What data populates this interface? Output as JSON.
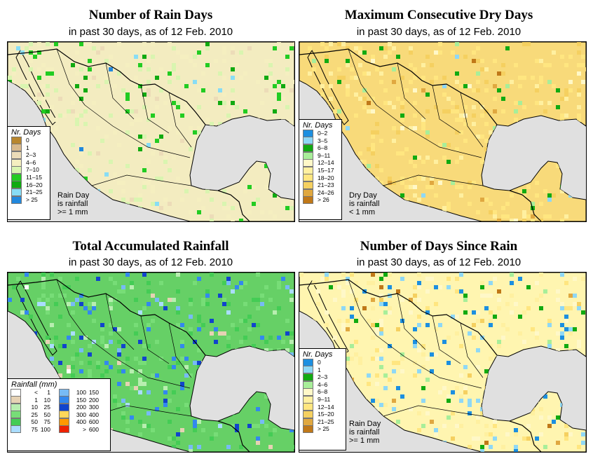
{
  "panels": [
    {
      "title": "Number of Rain Days",
      "subtitle": "in past 30 days, as of  12 Feb. 2010",
      "legend_title": "Nr. Days",
      "legend": [
        {
          "label": "0",
          "color": "#b8862e"
        },
        {
          "label": "1",
          "color": "#d9b98c"
        },
        {
          "label": "2–3",
          "color": "#ecdcb8"
        },
        {
          "label": "4–6",
          "color": "#f5efc0"
        },
        {
          "label": "7–10",
          "color": "#d9f5b0"
        },
        {
          "label": "11–15",
          "color": "#22cc22"
        },
        {
          "label": "16–20",
          "color": "#11aa11"
        },
        {
          "label": "21–25",
          "color": "#88ddf5"
        },
        {
          "label": "> 25",
          "color": "#2288dd"
        }
      ],
      "note": [
        "Rain Day",
        "is rainfall",
        ">= 1 mm"
      ],
      "land_base": "#f3ecc0"
    },
    {
      "title": "Maximum Consecutive Dry Days",
      "subtitle": "in past 30 days, as of  12 Feb. 2010",
      "legend_title": "Nr. Days",
      "legend": [
        {
          "label": "0–2",
          "color": "#1c8fe0"
        },
        {
          "label": "3–5",
          "color": "#8fd8f5"
        },
        {
          "label": "6–8",
          "color": "#11aa11"
        },
        {
          "label": "9–11",
          "color": "#a8ee99"
        },
        {
          "label": "12–14",
          "color": "#fff8c8"
        },
        {
          "label": "15–17",
          "color": "#fff0a0"
        },
        {
          "label": "18–20",
          "color": "#ffe680"
        },
        {
          "label": "21–23",
          "color": "#f5d060"
        },
        {
          "label": "24–26",
          "color": "#e0a840"
        },
        {
          "label": "> 26",
          "color": "#c07818"
        }
      ],
      "note": [
        "Dry Day",
        "is rainfall",
        "< 1 mm"
      ],
      "land_base": "#f8da7a"
    },
    {
      "title": "Total Accumulated Rainfall",
      "subtitle": "in past 30 days, as of  12 Feb. 2010",
      "legend_title": "Rainfall (mm)",
      "legend_left": [
        {
          "lo": "<",
          "hi": "1",
          "color": "#ffffff"
        },
        {
          "lo": "1",
          "hi": "10",
          "color": "#e6d2b4"
        },
        {
          "lo": "10",
          "hi": "25",
          "color": "#b8eeb0"
        },
        {
          "lo": "25",
          "hi": "50",
          "color": "#77dd77"
        },
        {
          "lo": "50",
          "hi": "75",
          "color": "#44cc55"
        },
        {
          "lo": "75",
          "hi": "100",
          "color": "#aaddff"
        }
      ],
      "legend_right": [
        {
          "lo": "100",
          "hi": "150",
          "color": "#77bbf5"
        },
        {
          "lo": "150",
          "hi": "200",
          "color": "#3388ee"
        },
        {
          "lo": "200",
          "hi": "300",
          "color": "#1144cc"
        },
        {
          "lo": "300",
          "hi": "400",
          "color": "#ffd75a"
        },
        {
          "lo": "400",
          "hi": "600",
          "color": "#ff9900"
        },
        {
          "lo": ">",
          "hi": "600",
          "color": "#ee2200"
        }
      ],
      "land_base": "#66d066"
    },
    {
      "title": "Number of Days Since Rain",
      "subtitle": "in past 30 days, as of  12 Feb. 2010",
      "legend_title": "Nr. Days",
      "legend": [
        {
          "label": "0",
          "color": "#1c8fe0"
        },
        {
          "label": "1",
          "color": "#8fd8f5"
        },
        {
          "label": "2–3",
          "color": "#11aa11"
        },
        {
          "label": "4–6",
          "color": "#a8ee99"
        },
        {
          "label": "6–8",
          "color": "#fff8c8"
        },
        {
          "label": "9–11",
          "color": "#fff0a0"
        },
        {
          "label": "12–14",
          "color": "#ffe680"
        },
        {
          "label": "15–20",
          "color": "#f5d060"
        },
        {
          "label": "21–25",
          "color": "#e0a840"
        },
        {
          "label": "> 25",
          "color": "#c07818"
        }
      ],
      "note": [
        "Rain Day",
        "is rainfall",
        ">= 1 mm"
      ],
      "land_base": "#fff5b0"
    }
  ],
  "colors": {
    "ocean": "#e0e0e0",
    "border": "#000000"
  }
}
